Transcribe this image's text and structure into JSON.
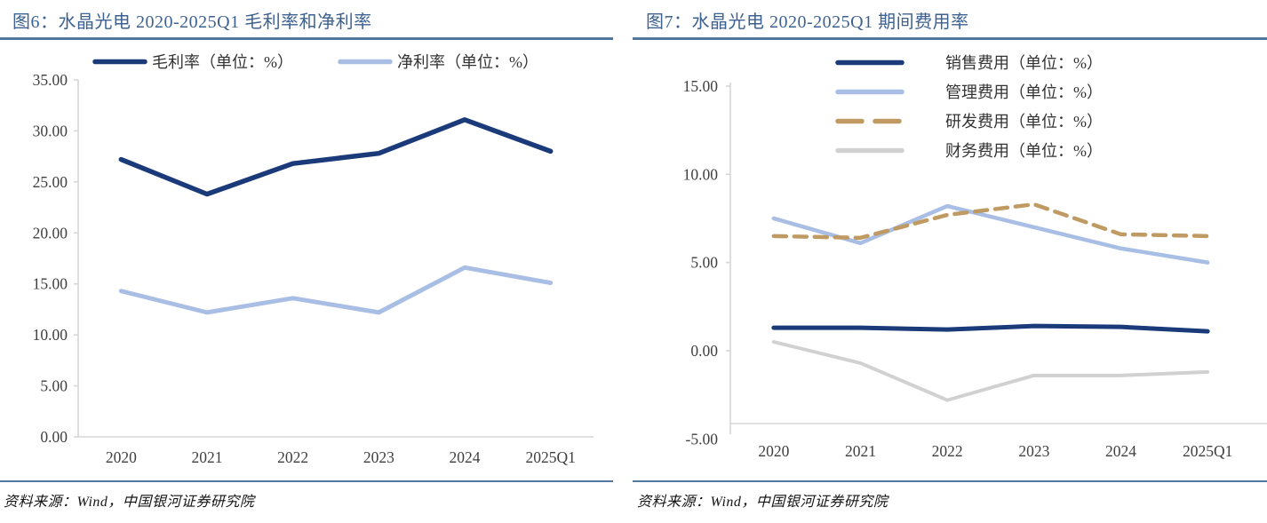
{
  "page": {
    "background": "#ffffff"
  },
  "colors": {
    "title_blue": "#3d6191",
    "rule_blue": "#54779f",
    "axis_gray": "#d6d6d6",
    "tick_text": "#3f3f3f",
    "navy": "#1a3a7a",
    "light_blue": "#a9bee4",
    "tan": "#bf9a62",
    "gray": "#d1d1d1"
  },
  "panels": [
    {
      "title": "图6：水晶光电 2020-2025Q1 毛利率和净利率",
      "source": "资料来源：Wind，中国银河证券研究院"
    },
    {
      "title": "图7：水晶光电 2020-2025Q1 期间费用率",
      "source": "资料来源：Wind，中国银河证券研究院"
    }
  ],
  "chart_data": [
    {
      "type": "line",
      "title": "图6：水晶光电 2020-2025Q1 毛利率和净利率",
      "categories": [
        "2020",
        "2021",
        "2022",
        "2023",
        "2024",
        "2025Q1"
      ],
      "series": [
        {
          "name": "毛利率（单位：%）",
          "values": [
            27.2,
            23.8,
            26.8,
            27.8,
            31.1,
            28.0
          ],
          "color": "#1a3a7a",
          "dash": false,
          "width": 5.5
        },
        {
          "name": "净利率（单位：%）",
          "values": [
            14.3,
            12.2,
            13.6,
            12.2,
            16.6,
            15.1
          ],
          "color": "#a9bee4",
          "dash": false,
          "width": 5
        }
      ],
      "ylim": [
        0,
        35
      ],
      "yticks": [
        0,
        5,
        10,
        15,
        20,
        25,
        30,
        35
      ],
      "grid": false,
      "legend_position": "top-center"
    },
    {
      "type": "line",
      "title": "图7：水晶光电 2020-2025Q1 期间费用率",
      "categories": [
        "2020",
        "2021",
        "2022",
        "2023",
        "2024",
        "2025Q1"
      ],
      "series": [
        {
          "name": "销售费用（单位：%）",
          "values": [
            1.3,
            1.3,
            1.2,
            1.4,
            1.35,
            1.1
          ],
          "color": "#1a3a7a",
          "dash": false,
          "width": 5
        },
        {
          "name": "管理费用（单位：%）",
          "values": [
            7.5,
            6.1,
            8.2,
            7.0,
            5.8,
            5.0
          ],
          "color": "#a9bee4",
          "dash": false,
          "width": 4.5
        },
        {
          "name": "研发费用（单位：%）",
          "values": [
            6.5,
            6.4,
            7.7,
            8.3,
            6.6,
            6.5
          ],
          "color": "#bf9a62",
          "dash": true,
          "width": 4.5
        },
        {
          "name": "财务费用（单位：%）",
          "values": [
            0.5,
            -0.7,
            -2.8,
            -1.4,
            -1.4,
            -1.2
          ],
          "color": "#d1d1d1",
          "dash": false,
          "width": 4
        }
      ],
      "ylim": [
        -5,
        15
      ],
      "yticks": [
        -5,
        0,
        5,
        10,
        15
      ],
      "grid": false,
      "legend_position": "top-right-column"
    }
  ]
}
